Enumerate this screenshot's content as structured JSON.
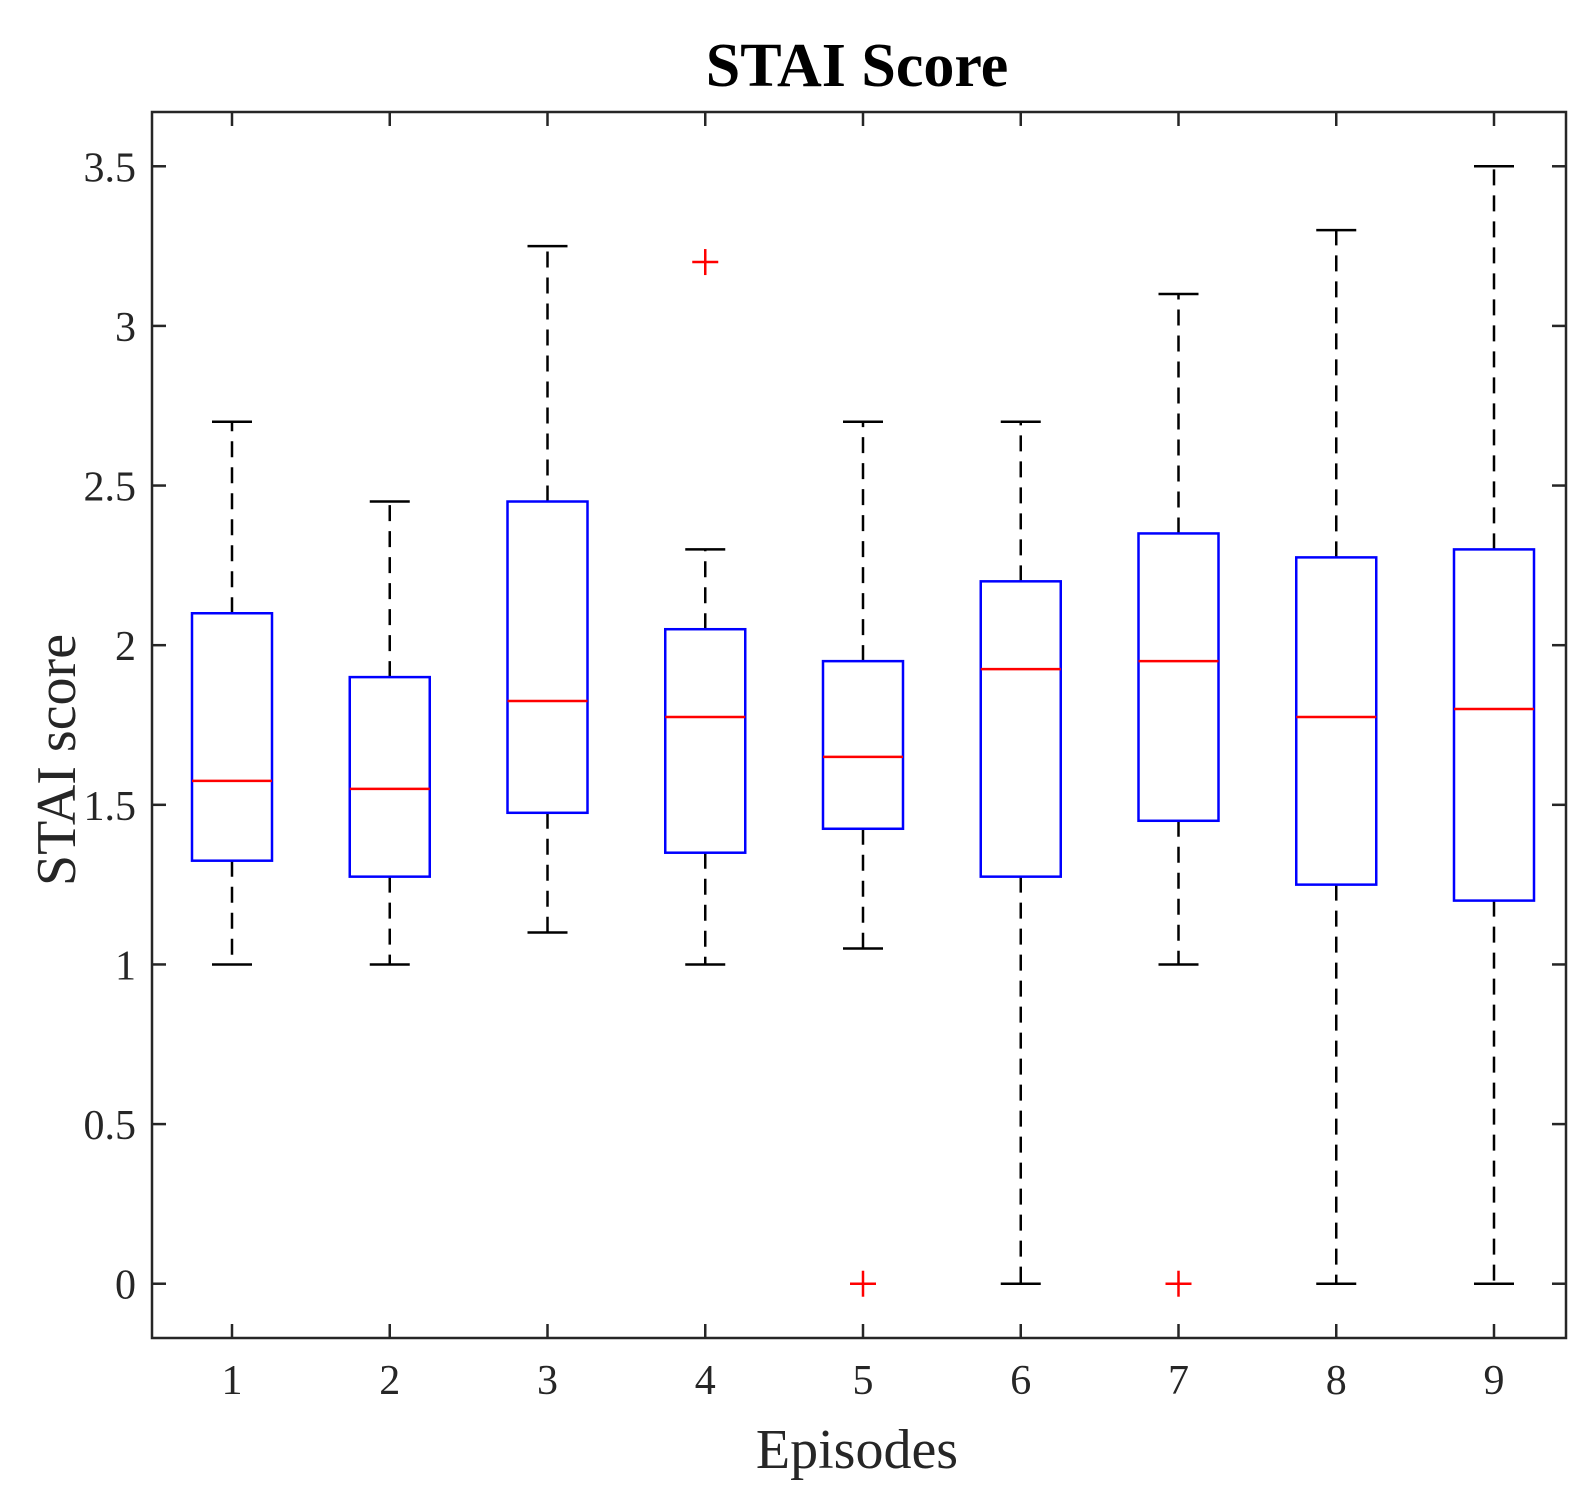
{
  "chart_data": {
    "type": "boxplot",
    "title": "STAI Score",
    "xlabel": "Episodes",
    "ylabel": "STAI score",
    "ylim": [
      -0.17,
      3.67
    ],
    "yticks": [
      0,
      0.5,
      1,
      1.5,
      2,
      2.5,
      3,
      3.5
    ],
    "ytick_labels": [
      "0",
      "0.5",
      "1",
      "1.5",
      "2",
      "2.5",
      "3",
      "3.5"
    ],
    "categories": [
      "1",
      "2",
      "3",
      "4",
      "5",
      "6",
      "7",
      "8",
      "9"
    ],
    "boxes": [
      {
        "category": "1",
        "whisker_low": 1.0,
        "q1": 1.325,
        "median": 1.575,
        "q3": 2.1,
        "whisker_high": 2.7,
        "outliers": []
      },
      {
        "category": "2",
        "whisker_low": 1.0,
        "q1": 1.275,
        "median": 1.55,
        "q3": 1.9,
        "whisker_high": 2.45,
        "outliers": []
      },
      {
        "category": "3",
        "whisker_low": 1.1,
        "q1": 1.475,
        "median": 1.825,
        "q3": 2.45,
        "whisker_high": 3.25,
        "outliers": []
      },
      {
        "category": "4",
        "whisker_low": 1.0,
        "q1": 1.35,
        "median": 1.775,
        "q3": 2.05,
        "whisker_high": 2.3,
        "outliers": [
          3.2
        ]
      },
      {
        "category": "5",
        "whisker_low": 1.05,
        "q1": 1.425,
        "median": 1.65,
        "q3": 1.95,
        "whisker_high": 2.7,
        "outliers": [
          0
        ]
      },
      {
        "category": "6",
        "whisker_low": 0,
        "q1": 1.275,
        "median": 1.925,
        "q3": 2.2,
        "whisker_high": 2.7,
        "outliers": []
      },
      {
        "category": "7",
        "whisker_low": 1.0,
        "q1": 1.45,
        "median": 1.95,
        "q3": 2.35,
        "whisker_high": 3.1,
        "outliers": [
          0
        ]
      },
      {
        "category": "8",
        "whisker_low": 0,
        "q1": 1.25,
        "median": 1.775,
        "q3": 2.275,
        "whisker_high": 3.3,
        "outliers": []
      },
      {
        "category": "9",
        "whisker_low": 0,
        "q1": 1.2,
        "median": 1.8,
        "q3": 2.3,
        "whisker_high": 3.5,
        "outliers": []
      }
    ],
    "colors": {
      "box": "#0000ff",
      "median": "#ff0000",
      "outlier": "#ff0000",
      "whisker": "#000000",
      "axis": "#262626"
    },
    "grid": false,
    "legend": "none"
  }
}
